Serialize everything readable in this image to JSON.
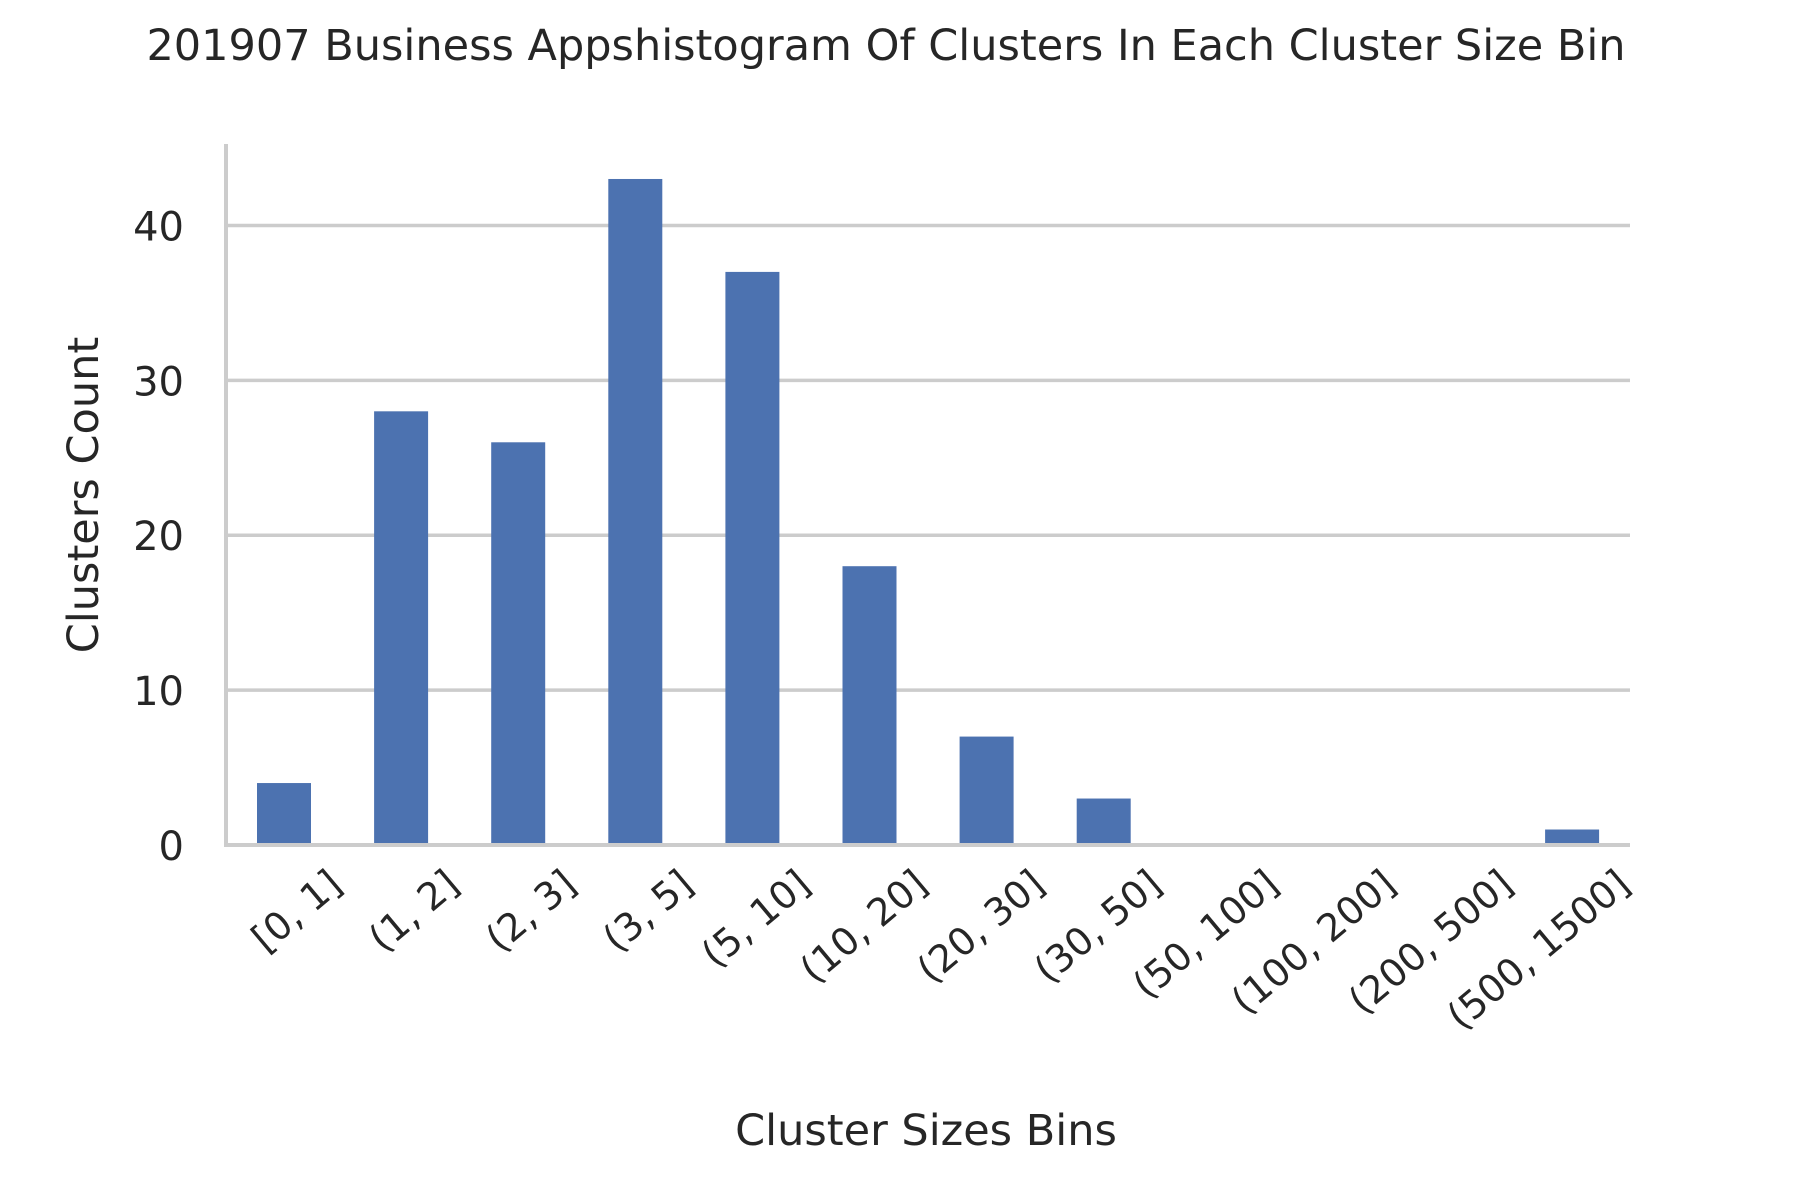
{
  "chart_data": {
    "type": "bar",
    "title": "201907 Business Appshistogram Of Clusters In Each Cluster Size Bin",
    "xlabel": "Cluster Sizes Bins",
    "ylabel": "Clusters Count",
    "categories": [
      "[0, 1]",
      "(1, 2]",
      "(2, 3]",
      "(3, 5]",
      "(5, 10]",
      "(10, 20]",
      "(20, 30]",
      "(30, 50]",
      "(50, 100]",
      "(100, 200]",
      "(200, 500]",
      "(500, 1500]"
    ],
    "values": [
      4,
      28,
      26,
      43,
      37,
      18,
      7,
      3,
      0,
      0,
      0,
      1
    ],
    "ylim": [
      0,
      45
    ],
    "yticks": [
      0,
      10,
      20,
      30,
      40
    ],
    "grid": "horizontal",
    "legend": "none",
    "colors": {
      "bar": "#4c72b0",
      "grid": "#cccccc",
      "axis": "#cccccc",
      "text": "#262626"
    }
  }
}
